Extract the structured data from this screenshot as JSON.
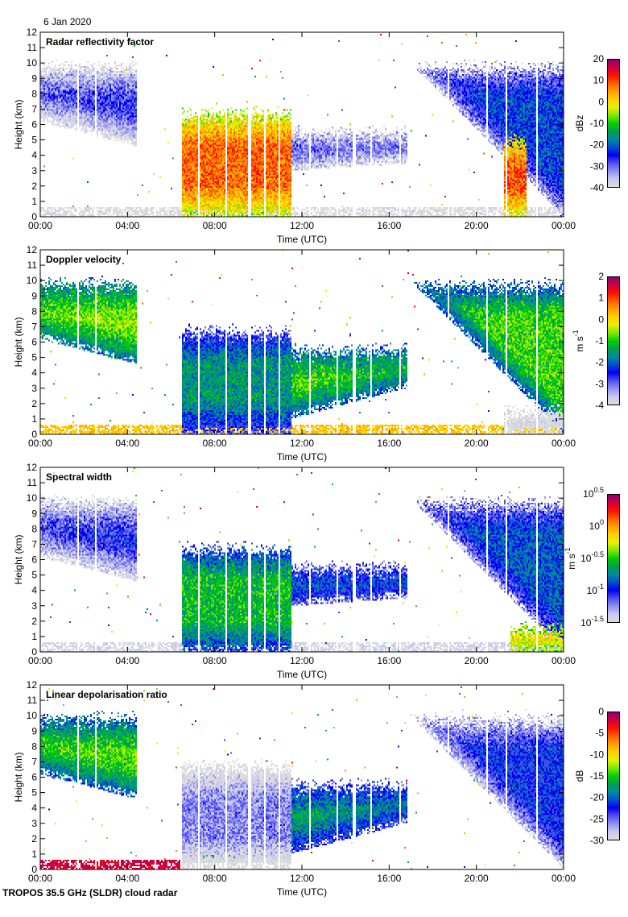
{
  "header": {
    "date": "6 Jan 2020"
  },
  "footer": {
    "instrument_caption": "TROPOS 35.5 GHz (SLDR) cloud radar"
  },
  "colormap": [
    "#dcdcdc",
    "#c8c8f0",
    "#9090f0",
    "#5050f0",
    "#0000f0",
    "#0050d0",
    "#008c9c",
    "#00a050",
    "#00d000",
    "#80e800",
    "#e8f000",
    "#ffd000",
    "#ffa000",
    "#ff6000",
    "#ff1000",
    "#d00040",
    "#8c0070"
  ],
  "chart_data": [
    {
      "id": "reflectivity",
      "type": "heatmap",
      "title": "Radar reflectivity factor",
      "xlabel": "Time (UTC)",
      "ylabel": "Height (km)",
      "x_tick_labels": [
        "00:00",
        "04:00",
        "08:00",
        "12:00",
        "16:00",
        "20:00",
        "00:00"
      ],
      "x_ticks_hours": [
        0,
        4,
        8,
        12,
        16,
        20,
        24
      ],
      "xlim_hours": [
        0,
        24
      ],
      "ylim_km": [
        0,
        12
      ],
      "y_ticks": [
        0,
        1,
        2,
        3,
        4,
        5,
        6,
        7,
        8,
        9,
        10,
        11,
        12
      ],
      "colorbar": {
        "label": "dBz",
        "min": -40,
        "max": 20,
        "ticks": [
          -40,
          -30,
          -20,
          -10,
          0,
          10,
          20
        ],
        "tick_labels": [
          "-40",
          "-30",
          "-20",
          "-10",
          "0",
          "10",
          "20"
        ]
      },
      "features": [
        {
          "t0": 0,
          "t1": 4.4,
          "base_start": 6.2,
          "base_end": 4.6,
          "top": 10.3,
          "value": -28,
          "note": "cirrus deck descending"
        },
        {
          "t0": 6.5,
          "t1": 11.5,
          "base_start": 0.0,
          "base_end": 0.0,
          "top": 7.2,
          "value": 8,
          "note": "precipitating system"
        },
        {
          "t0": 11.5,
          "t1": 16.8,
          "base_start": 3.0,
          "base_end": 3.5,
          "top": 6.0,
          "value": -25
        },
        {
          "t0": 17.0,
          "t1": 24,
          "base_start": 10.0,
          "base_end": 0.0,
          "top": 10.2,
          "value": -22,
          "note": "deepening cloud"
        },
        {
          "t0": 21.3,
          "t1": 22.3,
          "base_start": 0.0,
          "base_end": 0.0,
          "top": 5.5,
          "value": 10
        }
      ],
      "ground_clutter": {
        "t0": 0,
        "t1": 24,
        "top": 0.6,
        "value": -40
      }
    },
    {
      "id": "doppler_velocity",
      "type": "heatmap",
      "title": "Doppler velocity",
      "xlabel": "Time (UTC)",
      "ylabel": "Height (km)",
      "x_tick_labels": [
        "00:00",
        "04:00",
        "08:00",
        "12:00",
        "16:00",
        "20:00",
        "00:00"
      ],
      "x_ticks_hours": [
        0,
        4,
        8,
        12,
        16,
        20,
        24
      ],
      "xlim_hours": [
        0,
        24
      ],
      "ylim_km": [
        0,
        12
      ],
      "y_ticks": [
        0,
        1,
        2,
        3,
        4,
        5,
        6,
        7,
        8,
        9,
        10,
        11,
        12
      ],
      "colorbar": {
        "label": "m s-1",
        "label_main": "m s",
        "label_sup": "-1",
        "min": -4,
        "max": 2,
        "ticks": [
          -4,
          -3,
          -2,
          -1,
          0,
          1,
          2
        ],
        "tick_labels": [
          "-4",
          "-3",
          "-2",
          "-1",
          "0",
          "1",
          "2"
        ]
      },
      "features": [
        {
          "t0": 0,
          "t1": 4.4,
          "base_start": 6.2,
          "base_end": 4.6,
          "top": 10.3,
          "value": -0.6
        },
        {
          "t0": 6.5,
          "t1": 11.5,
          "base_start": 0.0,
          "base_end": 0.0,
          "top": 7.2,
          "value": -1.6
        },
        {
          "t0": 11.5,
          "t1": 16.8,
          "base_start": 1.0,
          "base_end": 3.0,
          "top": 6.0,
          "value": -0.8
        },
        {
          "t0": 17.0,
          "t1": 24,
          "base_start": 10.0,
          "base_end": 0.0,
          "top": 10.2,
          "value": -0.9
        },
        {
          "t0": 21.3,
          "t1": 24,
          "base_start": 0.0,
          "base_end": 0.0,
          "top": 2.0,
          "value": -3.2
        }
      ],
      "ground_clutter": {
        "t0": 0,
        "t1": 24,
        "top": 0.6,
        "value": 0.2
      }
    },
    {
      "id": "spectral_width",
      "type": "heatmap",
      "title": "Spectral width",
      "xlabel": "Time (UTC)",
      "ylabel": "Height (km)",
      "x_tick_labels": [
        "00:00",
        "04:00",
        "08:00",
        "12:00",
        "16:00",
        "20:00",
        "00:00"
      ],
      "x_ticks_hours": [
        0,
        4,
        8,
        12,
        16,
        20,
        24
      ],
      "xlim_hours": [
        0,
        24
      ],
      "ylim_km": [
        0,
        12
      ],
      "y_ticks": [
        0,
        1,
        2,
        3,
        4,
        5,
        6,
        7,
        8,
        9,
        10,
        11,
        12
      ],
      "colorbar": {
        "label": "m s-1",
        "label_main": "m s",
        "label_sup": "-1",
        "scale": "log10",
        "min": -1.5,
        "max": 0.5,
        "ticks": [
          -1.5,
          -1,
          -0.5,
          0,
          0.5
        ],
        "tick_labels_base": [
          "10",
          "10",
          "10",
          "10",
          "10"
        ],
        "tick_labels_exp": [
          "-1.5",
          "-1",
          "-0.5",
          "0",
          "0.5"
        ]
      },
      "features": [
        {
          "t0": 0,
          "t1": 4.4,
          "base_start": 6.2,
          "base_end": 4.6,
          "top": 10.3,
          "value": -1.05
        },
        {
          "t0": 6.5,
          "t1": 11.5,
          "base_start": 0.0,
          "base_end": 0.0,
          "top": 7.2,
          "value": -0.55
        },
        {
          "t0": 11.5,
          "t1": 16.8,
          "base_start": 3.0,
          "base_end": 3.5,
          "top": 6.0,
          "value": -0.7
        },
        {
          "t0": 17.0,
          "t1": 24,
          "base_start": 10.0,
          "base_end": 0.0,
          "top": 10.2,
          "value": -0.85
        },
        {
          "t0": 21.6,
          "t1": 24,
          "base_start": 0.0,
          "base_end": 0.0,
          "top": 2.0,
          "value": 0.05
        }
      ],
      "ground_clutter": {
        "t0": 0,
        "t1": 24,
        "top": 0.6,
        "value": -1.45
      }
    },
    {
      "id": "ldr",
      "type": "heatmap",
      "title": "Linear depolarisation ratio",
      "xlabel": "Time (UTC)",
      "ylabel": "Height (km)",
      "x_tick_labels": [
        "00:00",
        "04:00",
        "08:00",
        "12:00",
        "16:00",
        "20:00",
        "00:00"
      ],
      "x_ticks_hours": [
        0,
        4,
        8,
        12,
        16,
        20,
        24
      ],
      "xlim_hours": [
        0,
        24
      ],
      "ylim_km": [
        0,
        12
      ],
      "y_ticks": [
        0,
        1,
        2,
        3,
        4,
        5,
        6,
        7,
        8,
        9,
        10,
        11,
        12
      ],
      "colorbar": {
        "label": "dB",
        "min": -30,
        "max": 0,
        "ticks": [
          -30,
          -25,
          -20,
          -15,
          -10,
          -5,
          0
        ],
        "tick_labels": [
          "-30",
          "-25",
          "-20",
          "-15",
          "-10",
          "-5",
          "0"
        ]
      },
      "features": [
        {
          "t0": 0,
          "t1": 4.4,
          "base_start": 6.2,
          "base_end": 4.6,
          "top": 10.3,
          "value": -14
        },
        {
          "t0": 6.5,
          "t1": 11.5,
          "base_start": 0.0,
          "base_end": 0.0,
          "top": 7.2,
          "value": -26
        },
        {
          "t0": 11.5,
          "t1": 16.8,
          "base_start": 1.0,
          "base_end": 3.0,
          "top": 6.0,
          "value": -17
        },
        {
          "t0": 17.0,
          "t1": 24,
          "base_start": 10.0,
          "base_end": 0.0,
          "top": 10.2,
          "value": -22
        },
        {
          "t0": 7.3,
          "t1": 9.2,
          "base_start": 0.7,
          "base_end": 0.7,
          "top": 1.0,
          "value": -12,
          "note": "melting layer"
        }
      ],
      "ground_clutter": {
        "t0": 0,
        "t1": 6.4,
        "top": 0.6,
        "value": -2
      }
    }
  ]
}
